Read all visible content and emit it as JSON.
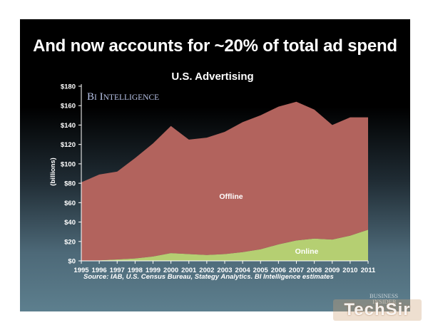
{
  "slide": {
    "headline": "And now accounts for ~20% of total ad spend",
    "source": "Source: IAB, U.S. Census Bureau, Stategy Analytics. BI Intelligence estimates",
    "logo_line1": "BUSINESS",
    "logo_line2": "INSIDER",
    "watermark": "TechSir"
  },
  "chart_data": {
    "type": "area",
    "title": "U.S. Advertising",
    "subtitle": "BI Intelligence",
    "xlabel": "",
    "ylabel": "(billions)",
    "ylim": [
      0,
      180
    ],
    "yticks": [
      "$0",
      "$20",
      "$40",
      "$60",
      "$80",
      "$100",
      "$120",
      "$140",
      "$160",
      "$180"
    ],
    "grid": false,
    "stacked": true,
    "x": [
      "1995",
      "1996",
      "1997",
      "1998",
      "1999",
      "2000",
      "2001",
      "2002",
      "2003",
      "2004",
      "2005",
      "2006",
      "2007",
      "2008",
      "2009",
      "2010",
      "2011"
    ],
    "series": [
      {
        "name": "Online",
        "color": "#b5cf72",
        "values": [
          0,
          0.5,
          1.5,
          2.5,
          4.5,
          8,
          7,
          6,
          7,
          9,
          12,
          17,
          21,
          23,
          22,
          26,
          32
        ]
      },
      {
        "name": "Offline",
        "color": "#b2635d",
        "values": [
          81,
          88.5,
          90.5,
          103.5,
          116.5,
          131,
          118,
          121,
          126,
          134,
          138,
          142,
          143,
          133,
          118,
          122,
          116
        ]
      }
    ]
  }
}
